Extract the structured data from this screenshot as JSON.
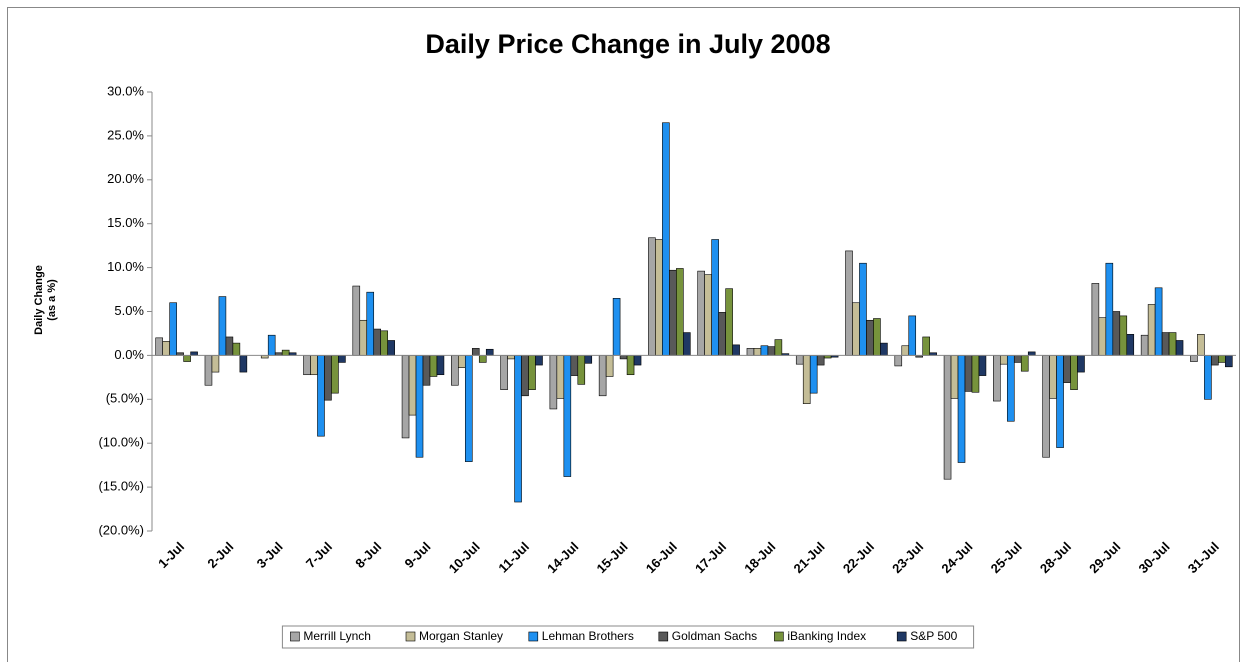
{
  "chart_data": {
    "type": "bar",
    "title": "Daily Price Change in July 2008",
    "ylabel": [
      "Daily Change",
      "(as a %)"
    ],
    "categories": [
      "1-Jul",
      "2-Jul",
      "3-Jul",
      "7-Jul",
      "8-Jul",
      "9-Jul",
      "10-Jul",
      "11-Jul",
      "14-Jul",
      "15-Jul",
      "16-Jul",
      "17-Jul",
      "18-Jul",
      "21-Jul",
      "22-Jul",
      "23-Jul",
      "24-Jul",
      "25-Jul",
      "28-Jul",
      "29-Jul",
      "30-Jul",
      "31-Jul"
    ],
    "series": [
      {
        "name": "Merrill Lynch",
        "color": "#a6a6a6",
        "values": [
          2.0,
          -3.4,
          0.0,
          -2.2,
          7.9,
          -9.4,
          -3.4,
          -3.9,
          -6.1,
          -4.6,
          13.4,
          9.6,
          0.8,
          -1.0,
          11.9,
          -1.2,
          -14.1,
          -5.2,
          -11.6,
          8.2,
          2.3,
          -0.7
        ]
      },
      {
        "name": "Morgan Stanley",
        "color": "#c4bd97",
        "values": [
          1.6,
          -1.9,
          -0.3,
          -2.2,
          4.0,
          -6.8,
          -1.4,
          -0.4,
          -4.9,
          -2.4,
          13.2,
          9.2,
          0.8,
          -5.5,
          6.0,
          1.1,
          -4.9,
          -1.0,
          -4.9,
          4.3,
          5.8,
          2.4
        ]
      },
      {
        "name": "Lehman Brothers",
        "color": "#1e90f0",
        "values": [
          6.0,
          6.7,
          2.3,
          -9.2,
          7.2,
          -11.6,
          -12.1,
          -16.7,
          -13.8,
          6.5,
          26.5,
          13.2,
          1.1,
          -4.3,
          10.5,
          4.5,
          -12.2,
          -7.5,
          -10.5,
          10.5,
          7.7,
          -5.0
        ]
      },
      {
        "name": "Goldman Sachs",
        "color": "#595959",
        "values": [
          0.3,
          2.1,
          0.3,
          -5.1,
          3.0,
          -3.4,
          0.8,
          -4.6,
          -2.3,
          -0.4,
          9.7,
          4.9,
          1.0,
          -1.1,
          4.0,
          -0.2,
          -4.1,
          -0.8,
          -3.1,
          5.0,
          2.6,
          -1.1
        ]
      },
      {
        "name": "iBanking Index",
        "color": "#77933c",
        "values": [
          -0.7,
          1.4,
          0.6,
          -4.3,
          2.8,
          -2.4,
          -0.8,
          -3.9,
          -3.3,
          -2.2,
          9.9,
          7.6,
          1.8,
          -0.3,
          4.2,
          2.1,
          -4.2,
          -1.8,
          -3.9,
          4.5,
          2.6,
          -0.8
        ]
      },
      {
        "name": "S&P 500",
        "color": "#1f3864",
        "values": [
          0.4,
          -1.9,
          0.3,
          -0.8,
          1.7,
          -2.2,
          0.7,
          -1.1,
          -0.9,
          -1.1,
          2.6,
          1.2,
          0.2,
          -0.2,
          1.4,
          0.3,
          -2.3,
          0.4,
          -1.9,
          2.4,
          1.7,
          -1.3
        ]
      }
    ],
    "ylim": [
      -20,
      30
    ],
    "yticks": [
      {
        "value": -20,
        "label": "(20.0%)"
      },
      {
        "value": -15,
        "label": "(15.0%)"
      },
      {
        "value": -10,
        "label": "(10.0%)"
      },
      {
        "value": -5,
        "label": "(5.0%)"
      },
      {
        "value": 0,
        "label": "0.0%"
      },
      {
        "value": 5,
        "label": "5.0%"
      },
      {
        "value": 10,
        "label": "10.0%"
      },
      {
        "value": 15,
        "label": "15.0%"
      },
      {
        "value": 20,
        "label": "20.0%"
      },
      {
        "value": 25,
        "label": "25.0%"
      },
      {
        "value": 30,
        "label": "30.0%"
      }
    ],
    "grid": false,
    "legend": "bottom"
  }
}
